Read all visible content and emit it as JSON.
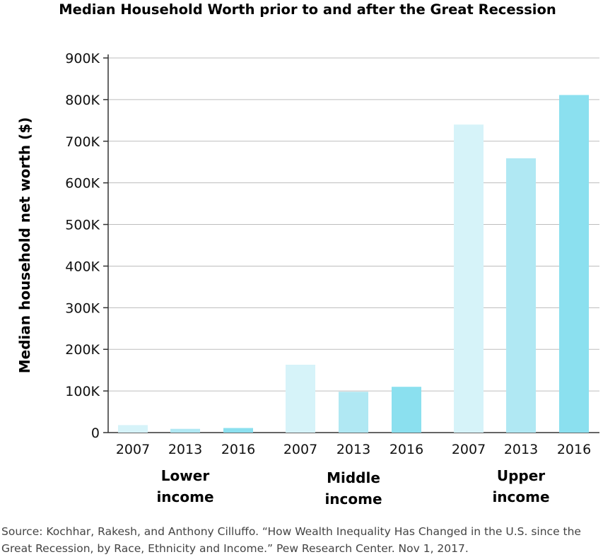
{
  "chart_data": {
    "type": "bar",
    "title": "Median Household Worth prior to and after the Great Recession",
    "ylabel": "Median household net worth ($)",
    "xlabel": "",
    "ylim": [
      0,
      900000
    ],
    "yticks": [
      {
        "value": 0,
        "label": "0"
      },
      {
        "value": 100000,
        "label": "100K"
      },
      {
        "value": 200000,
        "label": "200K"
      },
      {
        "value": 300000,
        "label": "300K"
      },
      {
        "value": 400000,
        "label": "400K"
      },
      {
        "value": 500000,
        "label": "500K"
      },
      {
        "value": 600000,
        "label": "600K"
      },
      {
        "value": 700000,
        "label": "700K"
      },
      {
        "value": 800000,
        "label": "800K"
      },
      {
        "value": 900000,
        "label": "900K"
      }
    ],
    "grid": true,
    "groups": [
      {
        "label": [
          "Lower",
          "income"
        ],
        "years": [
          "2007",
          "2013",
          "2016"
        ],
        "values": [
          18000,
          9000,
          11000
        ]
      },
      {
        "label": [
          "Middle",
          "income"
        ],
        "years": [
          "2007",
          "2013",
          "2016"
        ],
        "values": [
          163000,
          98000,
          110000
        ]
      },
      {
        "label": [
          "Upper",
          "income"
        ],
        "years": [
          "2007",
          "2013",
          "2016"
        ],
        "values": [
          740000,
          659000,
          811000
        ]
      }
    ],
    "colors": {
      "2007": "#d6f3f9",
      "2013": "#b0e8f3",
      "2016": "#8be0ef"
    }
  },
  "source": "Source: Kochhar, Rakesh, and Anthony Cilluffo. “How Wealth Inequality Has Changed in the U.S. since the Great Recession, by Race, Ethnicity and Income.” Pew Research Center. Nov 1, 2017."
}
